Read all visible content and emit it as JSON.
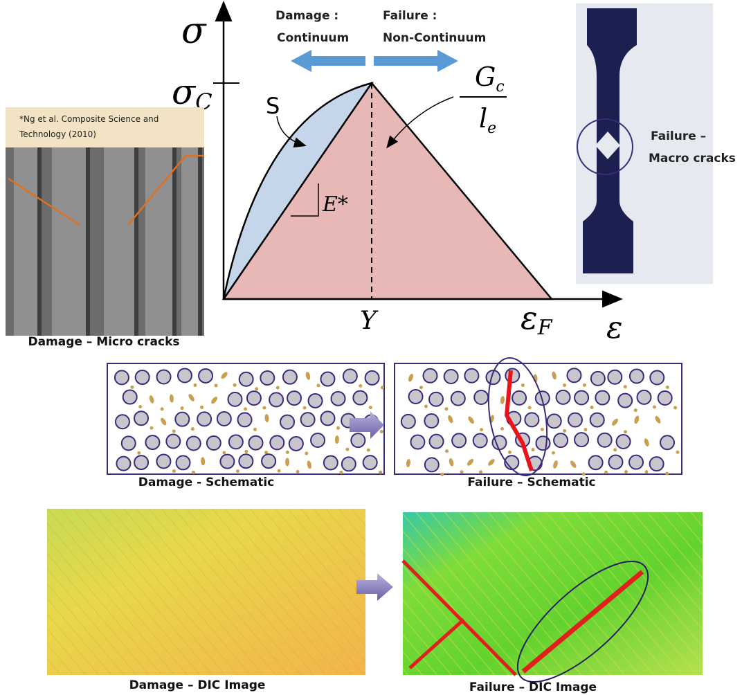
{
  "stress_strain": {
    "damage_label": [
      "Damage :",
      "Continuum"
    ],
    "failure_label": [
      "Failure :",
      "Non-Continuum"
    ],
    "y_axis": "σ",
    "critical_stress": {
      "symbol": "σ",
      "sub": "C"
    },
    "area_s": "S",
    "fracture_energy": {
      "numerator": {
        "symbol": "G",
        "sub": "c"
      },
      "denominator": {
        "symbol": "l",
        "sub": "e"
      }
    },
    "modulus": "E*",
    "peak_strain": "Y",
    "failure_strain": {
      "symbol": "ε",
      "sub": "F"
    },
    "x_axis": "ε"
  },
  "micrograph": {
    "citation": [
      "*Ng et al. Composite Science and",
      "Technology (2010)"
    ],
    "caption": "Damage – Micro cracks"
  },
  "specimen": {
    "label": [
      "Failure –",
      "Macro cracks"
    ]
  },
  "schematics": {
    "damage": "Damage - Schematic",
    "failure": "Failure – Schematic"
  },
  "dic": {
    "damage": "Damage – DIC Image",
    "failure": "Failure – DIC Image"
  }
}
